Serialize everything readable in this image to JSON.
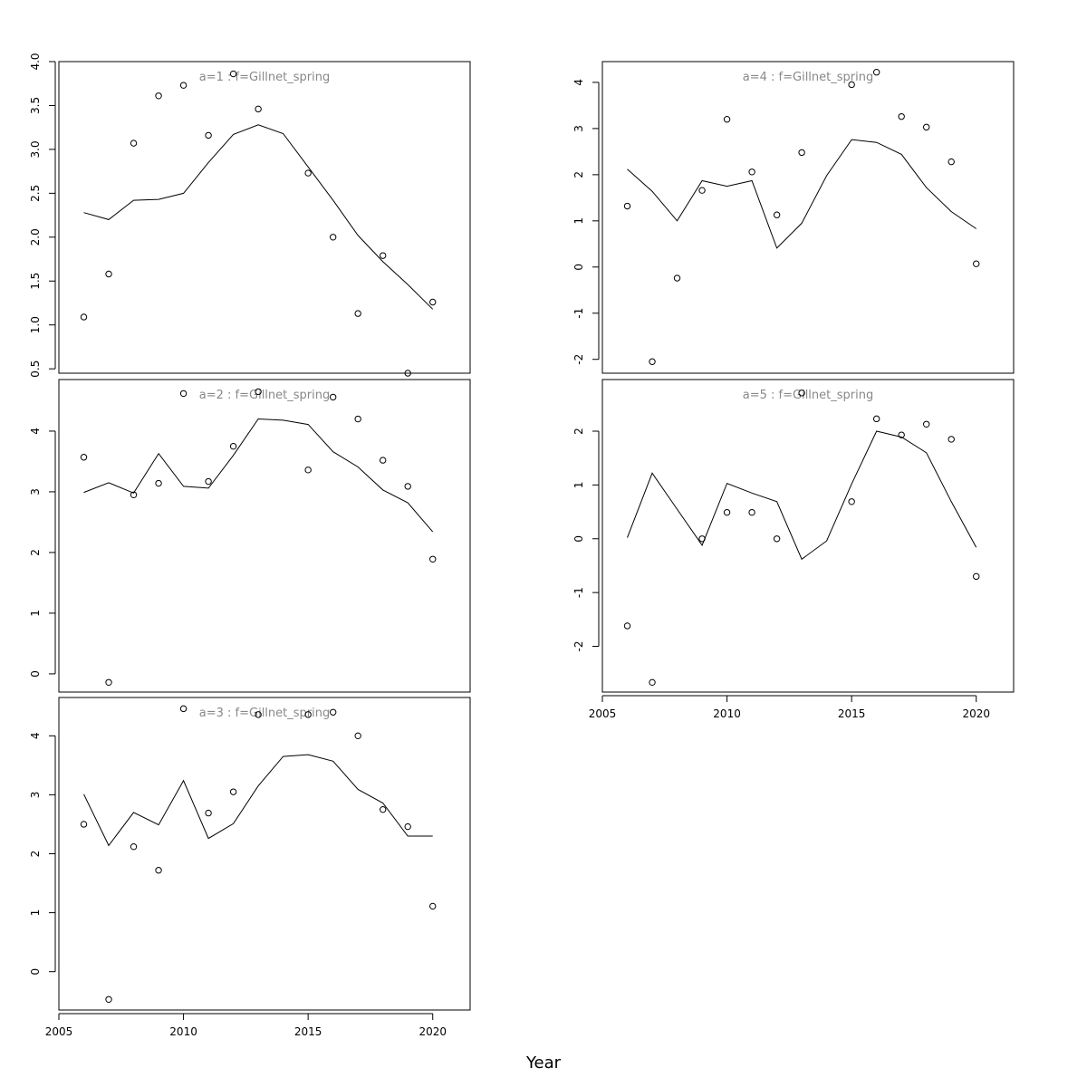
{
  "figure": {
    "xlabel": "Year"
  },
  "chart_data": [
    {
      "type": "scatter",
      "title": "a=1  :  f=Gillnet_spring",
      "xlim": [
        2005,
        2021.5
      ],
      "ylim": [
        0.45,
        4.0
      ],
      "xticks": [],
      "yticks": [
        0.5,
        1.0,
        1.5,
        2.0,
        2.5,
        3.0,
        3.5,
        4.0
      ],
      "ytick_labels": [
        "0.5",
        "1.0",
        "1.5",
        "2.0",
        "2.5",
        "3.0",
        "3.5",
        "4.0"
      ],
      "x": [
        2006,
        2007,
        2008,
        2009,
        2010,
        2011,
        2012,
        2013,
        2014,
        2015,
        2016,
        2017,
        2018,
        2019,
        2020
      ],
      "series": [
        {
          "kind": "points",
          "values": [
            1.09,
            1.58,
            3.07,
            3.61,
            3.73,
            3.16,
            3.86,
            3.46,
            null,
            2.73,
            2.0,
            1.13,
            1.79,
            0.45,
            1.26
          ]
        },
        {
          "kind": "line",
          "values": [
            2.28,
            2.2,
            2.42,
            2.43,
            2.5,
            2.85,
            3.17,
            3.28,
            3.18,
            2.8,
            2.42,
            2.02,
            1.72,
            1.46,
            1.18
          ]
        }
      ]
    },
    {
      "type": "scatter",
      "title": "a=2  :  f=Gillnet_spring",
      "xlim": [
        2005,
        2021.5
      ],
      "ylim": [
        -0.3,
        4.85
      ],
      "xticks": [],
      "yticks": [
        0,
        1,
        2,
        3,
        4
      ],
      "ytick_labels": [
        "0",
        "1",
        "2",
        "3",
        "4"
      ],
      "x": [
        2006,
        2007,
        2008,
        2009,
        2010,
        2011,
        2012,
        2013,
        2014,
        2015,
        2016,
        2017,
        2018,
        2019,
        2020
      ],
      "series": [
        {
          "kind": "points",
          "values": [
            3.57,
            -0.14,
            2.95,
            3.14,
            4.62,
            3.17,
            3.75,
            4.65,
            null,
            3.36,
            4.56,
            4.2,
            3.52,
            3.09,
            1.89
          ]
        },
        {
          "kind": "line",
          "values": [
            2.99,
            3.15,
            2.98,
            3.63,
            3.09,
            3.06,
            3.6,
            4.2,
            4.18,
            4.11,
            3.66,
            3.41,
            3.03,
            2.82,
            2.34
          ]
        }
      ]
    },
    {
      "type": "scatter",
      "title": "a=3  :  f=Gillnet_spring",
      "xlim": [
        2005,
        2021.5
      ],
      "ylim": [
        -0.65,
        4.65
      ],
      "xticks": [
        2005,
        2010,
        2015,
        2020
      ],
      "xtick_labels": [
        "2005",
        "2010",
        "2015",
        "2020"
      ],
      "yticks": [
        0,
        1,
        2,
        3,
        4
      ],
      "ytick_labels": [
        "0",
        "1",
        "2",
        "3",
        "4"
      ],
      "x": [
        2006,
        2007,
        2008,
        2009,
        2010,
        2011,
        2012,
        2013,
        2014,
        2015,
        2016,
        2017,
        2018,
        2019,
        2020
      ],
      "series": [
        {
          "kind": "points",
          "values": [
            2.5,
            -0.47,
            2.12,
            1.72,
            4.46,
            2.69,
            3.05,
            4.36,
            null,
            4.36,
            4.4,
            4.0,
            2.75,
            2.46,
            1.11
          ]
        },
        {
          "kind": "line",
          "values": [
            3.01,
            2.14,
            2.7,
            2.49,
            3.24,
            2.26,
            2.51,
            3.15,
            3.65,
            3.68,
            3.57,
            3.09,
            2.86,
            2.3,
            2.3
          ]
        }
      ]
    },
    {
      "type": "scatter",
      "title": "a=4  :  f=Gillnet_spring",
      "xlim": [
        2005,
        2021.5
      ],
      "ylim": [
        -2.3,
        4.45
      ],
      "xticks": [],
      "yticks": [
        -2,
        -1,
        0,
        1,
        2,
        3,
        4
      ],
      "ytick_labels": [
        "-2",
        "-1",
        "0",
        "1",
        "2",
        "3",
        "4"
      ],
      "x": [
        2006,
        2007,
        2008,
        2009,
        2010,
        2011,
        2012,
        2013,
        2014,
        2015,
        2016,
        2017,
        2018,
        2019,
        2020
      ],
      "series": [
        {
          "kind": "points",
          "values": [
            1.32,
            -2.05,
            -0.24,
            1.66,
            3.2,
            2.06,
            1.13,
            2.48,
            null,
            3.95,
            4.22,
            3.26,
            3.03,
            2.28,
            0.07
          ]
        },
        {
          "kind": "line",
          "values": [
            2.12,
            1.64,
            1.0,
            1.87,
            1.75,
            1.87,
            0.41,
            0.95,
            1.98,
            2.76,
            2.7,
            2.44,
            1.72,
            1.2,
            0.83
          ]
        }
      ]
    },
    {
      "type": "scatter",
      "title": "a=5  :  f=Gillnet_spring",
      "xlim": [
        2005,
        2021.5
      ],
      "ylim": [
        -2.85,
        2.96
      ],
      "xticks": [
        2005,
        2010,
        2015,
        2020
      ],
      "xtick_labels": [
        "2005",
        "2010",
        "2015",
        "2020"
      ],
      "yticks": [
        -2,
        -1,
        0,
        1,
        2
      ],
      "ytick_labels": [
        "-2",
        "-1",
        "0",
        "1",
        "2"
      ],
      "x": [
        2006,
        2007,
        2008,
        2009,
        2010,
        2011,
        2012,
        2013,
        2014,
        2015,
        2016,
        2017,
        2018,
        2019,
        2020
      ],
      "series": [
        {
          "kind": "points",
          "values": [
            -1.62,
            -2.67,
            null,
            0.0,
            0.49,
            0.49,
            0.0,
            2.71,
            null,
            0.69,
            2.23,
            1.93,
            2.13,
            1.85,
            -0.7
          ]
        },
        {
          "kind": "line",
          "values": [
            0.02,
            1.22,
            0.55,
            -0.12,
            1.03,
            0.85,
            0.69,
            -0.38,
            -0.04,
            1.02,
            2.0,
            1.89,
            1.6,
            0.69,
            -0.16
          ]
        }
      ]
    }
  ]
}
